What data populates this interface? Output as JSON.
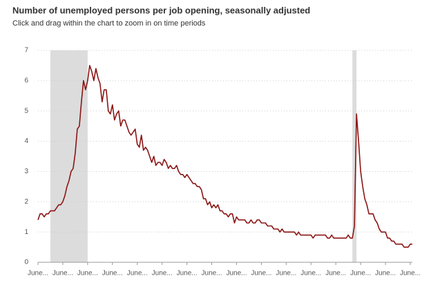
{
  "chart_data": {
    "type": "line",
    "title": "Number of unemployed persons per job opening, seasonally adjusted",
    "subtitle": "Click and drag within the chart to zoom in on time periods",
    "categories": [
      "June...",
      null,
      null,
      null,
      null,
      null,
      null,
      null,
      null,
      null,
      null,
      null,
      "June...",
      null,
      null,
      null,
      null,
      null,
      null,
      null,
      null,
      null,
      null,
      null,
      "June...",
      null,
      null,
      null,
      null,
      null,
      null,
      null,
      null,
      null,
      null,
      null,
      "June...",
      null,
      null,
      null,
      null,
      null,
      null,
      null,
      null,
      null,
      null,
      null,
      "June...",
      null,
      null,
      null,
      null,
      null,
      null,
      null,
      null,
      null,
      null,
      null,
      "June...",
      null,
      null,
      null,
      null,
      null,
      null,
      null,
      null,
      null,
      null,
      null,
      "June...",
      null,
      null,
      null,
      null,
      null,
      null,
      null,
      null,
      null,
      null,
      null,
      "June...",
      null,
      null,
      null,
      null,
      null,
      null,
      null,
      null,
      null,
      null,
      null,
      "June...",
      null,
      null,
      null,
      null,
      null,
      null,
      null,
      null,
      null,
      null,
      null,
      "June...",
      null,
      null,
      null,
      null,
      null,
      null,
      null,
      null,
      null,
      null,
      null,
      "June...",
      null,
      null,
      null,
      null,
      null,
      null,
      null,
      null,
      null,
      null,
      null,
      "June...",
      null,
      null,
      null,
      null,
      null,
      null,
      null,
      null,
      null,
      null,
      null,
      "June...",
      null,
      null,
      null,
      null,
      null,
      null,
      null,
      null,
      null,
      null,
      null,
      "June...",
      null,
      null,
      null,
      null,
      null,
      null,
      null,
      null,
      null,
      null,
      null,
      "June...",
      null,
      null,
      null,
      null,
      null,
      null,
      null,
      null,
      null,
      null,
      null,
      "June...",
      null
    ],
    "series": [
      {
        "name": "Unemployed persons per job opening",
        "color": "#8b1414",
        "values": [
          1.4,
          1.6,
          1.6,
          1.5,
          1.6,
          1.6,
          1.7,
          1.7,
          1.7,
          1.8,
          1.9,
          1.9,
          2.0,
          2.2,
          2.5,
          2.7,
          3.0,
          3.1,
          3.6,
          4.4,
          4.5,
          5.3,
          6.0,
          5.7,
          6.0,
          6.5,
          6.3,
          6.0,
          6.4,
          6.1,
          5.9,
          5.3,
          5.7,
          5.7,
          5.0,
          4.9,
          5.2,
          4.7,
          4.9,
          5.0,
          4.5,
          4.7,
          4.7,
          4.5,
          4.3,
          4.2,
          4.3,
          4.4,
          3.9,
          3.8,
          4.2,
          3.7,
          3.8,
          3.7,
          3.5,
          3.3,
          3.5,
          3.2,
          3.3,
          3.3,
          3.2,
          3.4,
          3.3,
          3.1,
          3.2,
          3.1,
          3.1,
          3.2,
          3.0,
          2.9,
          2.9,
          2.8,
          2.9,
          2.8,
          2.7,
          2.6,
          2.6,
          2.5,
          2.5,
          2.4,
          2.1,
          2.1,
          1.9,
          2.0,
          1.8,
          1.9,
          1.8,
          1.9,
          1.7,
          1.7,
          1.6,
          1.6,
          1.5,
          1.6,
          1.6,
          1.3,
          1.5,
          1.4,
          1.4,
          1.4,
          1.4,
          1.3,
          1.3,
          1.4,
          1.3,
          1.3,
          1.4,
          1.4,
          1.3,
          1.3,
          1.3,
          1.2,
          1.2,
          1.2,
          1.1,
          1.1,
          1.1,
          1.0,
          1.1,
          1.0,
          1.0,
          1.0,
          1.0,
          1.0,
          1.0,
          0.9,
          1.0,
          0.9,
          0.9,
          0.9,
          0.9,
          0.9,
          0.9,
          0.8,
          0.9,
          0.9,
          0.9,
          0.9,
          0.9,
          0.9,
          0.8,
          0.8,
          0.9,
          0.8,
          0.8,
          0.8,
          0.8,
          0.8,
          0.8,
          0.8,
          0.9,
          0.8,
          0.8,
          1.2,
          4.9,
          4.0,
          3.0,
          2.5,
          2.1,
          1.9,
          1.6,
          1.6,
          1.6,
          1.4,
          1.3,
          1.1,
          1.0,
          1.0,
          1.0,
          0.8,
          0.8,
          0.7,
          0.7,
          0.6,
          0.6,
          0.6,
          0.6,
          0.5,
          0.5,
          0.5,
          0.6,
          0.6
        ]
      }
    ],
    "shaded_periods": [
      [
        6,
        24
      ],
      [
        152,
        154
      ]
    ],
    "shade_color": "#dcdcdc",
    "ylim": [
      0,
      7
    ],
    "yticks": [
      0,
      1,
      2,
      3,
      4,
      5,
      6,
      7
    ],
    "grid": true
  }
}
